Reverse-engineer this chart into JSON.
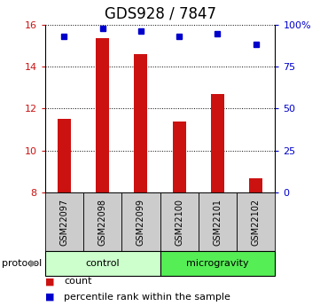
{
  "title": "GDS928 / 7847",
  "samples": [
    "GSM22097",
    "GSM22098",
    "GSM22099",
    "GSM22100",
    "GSM22101",
    "GSM22102"
  ],
  "bar_values": [
    11.5,
    15.35,
    14.6,
    11.4,
    12.7,
    8.7
  ],
  "percentile_values": [
    93,
    97.5,
    96,
    93,
    94.5,
    88
  ],
  "bar_color": "#cc1111",
  "dot_color": "#0000cc",
  "ylim_left": [
    8,
    16
  ],
  "ylim_right": [
    0,
    100
  ],
  "yticks_left": [
    8,
    10,
    12,
    14,
    16
  ],
  "yticks_right": [
    0,
    25,
    50,
    75,
    100
  ],
  "ytick_labels_right": [
    "0",
    "25",
    "50",
    "75",
    "100%"
  ],
  "groups": [
    {
      "label": "control",
      "start": 0,
      "end": 3,
      "color": "#ccffcc"
    },
    {
      "label": "microgravity",
      "start": 3,
      "end": 6,
      "color": "#55ee55"
    }
  ],
  "protocol_label": "protocol",
  "legend_items": [
    {
      "color": "#cc1111",
      "label": "count"
    },
    {
      "color": "#0000cc",
      "label": "percentile rank within the sample"
    }
  ],
  "title_fontsize": 12,
  "tick_fontsize": 8,
  "sample_fontsize": 7,
  "legend_fontsize": 8,
  "protocol_fontsize": 8
}
